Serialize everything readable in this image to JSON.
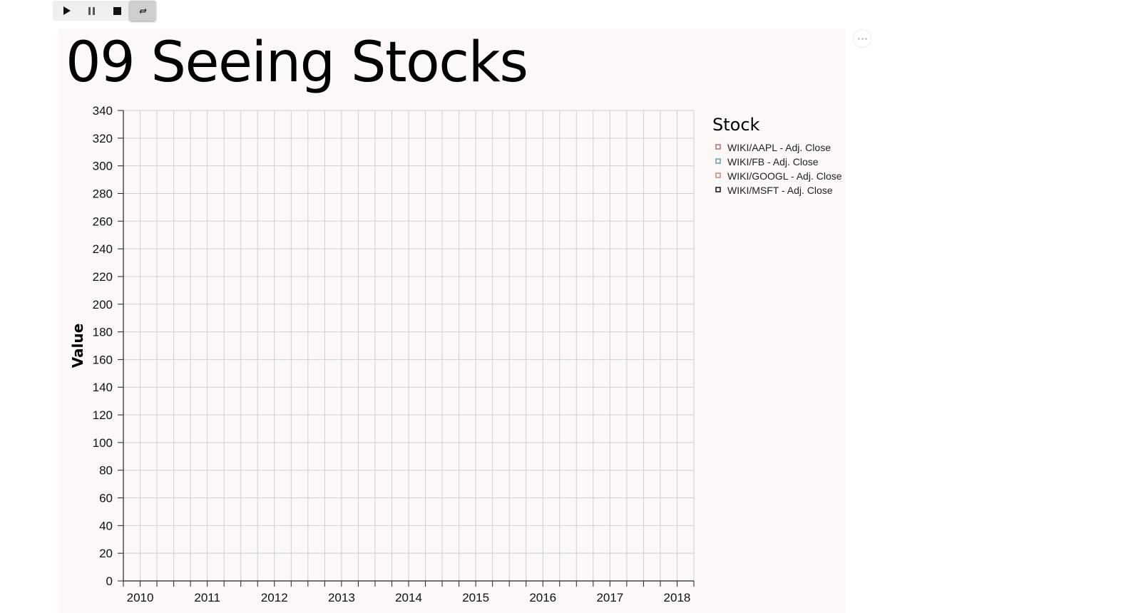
{
  "toolbar": {
    "buttons": [
      {
        "name": "play-button",
        "icon": "play-icon"
      },
      {
        "name": "pause-button",
        "icon": "pause-icon"
      },
      {
        "name": "stop-button",
        "icon": "stop-icon"
      },
      {
        "name": "loop-button",
        "icon": "loop-icon",
        "active": true
      }
    ]
  },
  "page": {
    "title": "09 Seeing Stocks"
  },
  "chart_data": {
    "type": "line",
    "title": "09 Seeing Stocks",
    "ylabel": "Value",
    "xlabel": "",
    "xlim": [
      2009.75,
      2018.25
    ],
    "ylim": [
      0,
      340
    ],
    "x_ticks": [
      "2010",
      "2011",
      "2012",
      "2013",
      "2014",
      "2015",
      "2016",
      "2017",
      "2018"
    ],
    "y_ticks": [
      0,
      20,
      40,
      60,
      80,
      100,
      120,
      140,
      160,
      180,
      200,
      220,
      240,
      260,
      280,
      300,
      320,
      340
    ],
    "grid": true,
    "legend": {
      "title": "Stock",
      "placement": "right",
      "entries": [
        {
          "name": "WIKI/AAPL - Adj. Close",
          "color": "#b5787b"
        },
        {
          "name": "WIKI/FB - Adj. Close",
          "color": "#6fa0aa"
        },
        {
          "name": "WIKI/GOOGL - Adj. Close",
          "color": "#c48f82"
        },
        {
          "name": "WIKI/MSFT - Adj. Close",
          "color": "#2a1a1a"
        }
      ]
    },
    "series": []
  }
}
